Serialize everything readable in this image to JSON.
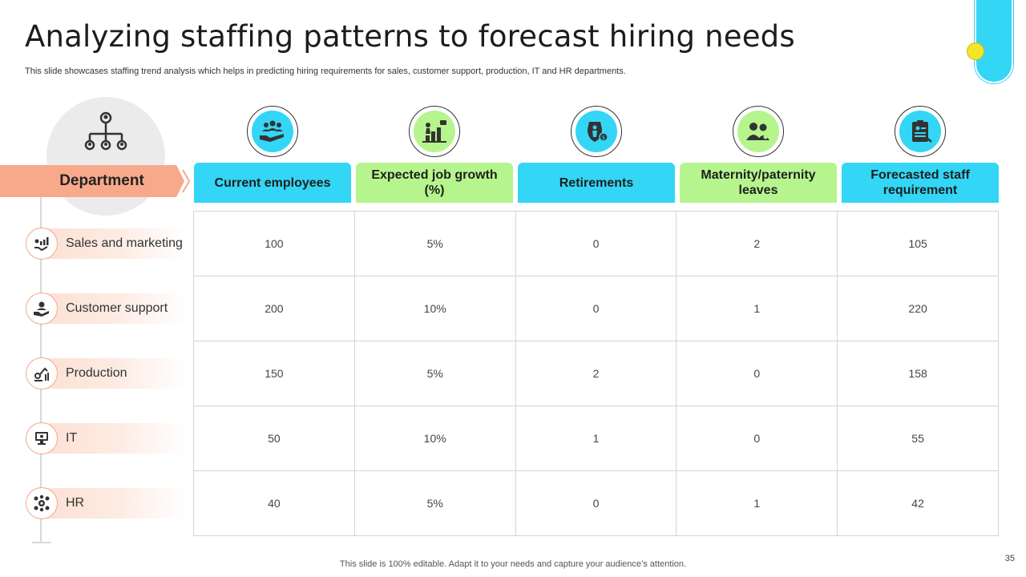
{
  "slide": {
    "title": "Analyzing staffing patterns to forecast hiring needs",
    "subtitle": "This slide showcases staffing trend analysis which helps in predicting hiring requirements for sales, customer support, production, IT and HR departments.",
    "footer": "This slide is 100% editable. Adapt it to your needs and capture your audience’s attention.",
    "page_number": "35"
  },
  "colors": {
    "accent_blue": "#33d6f5",
    "accent_green": "#b6f58d",
    "accent_orange": "#f9a98b",
    "accent_yellow": "#f5e52a"
  },
  "department_header": {
    "label": "Department",
    "icon": "org-chart-icon"
  },
  "departments": [
    {
      "label": "Sales and marketing",
      "icon": "sales-growth-icon"
    },
    {
      "label": "Customer support",
      "icon": "support-hand-icon"
    },
    {
      "label": "Production",
      "icon": "production-icon"
    },
    {
      "label": "IT",
      "icon": "computer-icon"
    },
    {
      "label": "HR",
      "icon": "people-gear-icon"
    }
  ],
  "columns": [
    {
      "label": "Current employees",
      "icon": "team-hand-icon",
      "color": "blue"
    },
    {
      "label": "Expected job growth (%)",
      "icon": "career-growth-icon",
      "color": "green"
    },
    {
      "label": "Retirements",
      "icon": "retirement-icon",
      "color": "blue"
    },
    {
      "label": "Maternity/paternity leaves",
      "icon": "parent-icon",
      "color": "green"
    },
    {
      "label": "Forecasted staff requirement",
      "icon": "clipboard-forecast-icon",
      "color": "blue"
    }
  ],
  "rows": [
    [
      "100",
      "5%",
      "0",
      "2",
      "105"
    ],
    [
      "200",
      "10%",
      "0",
      "1",
      "220"
    ],
    [
      "150",
      "5%",
      "2",
      "0",
      "158"
    ],
    [
      "50",
      "10%",
      "1",
      "0",
      "55"
    ],
    [
      "40",
      "5%",
      "0",
      "1",
      "42"
    ]
  ]
}
